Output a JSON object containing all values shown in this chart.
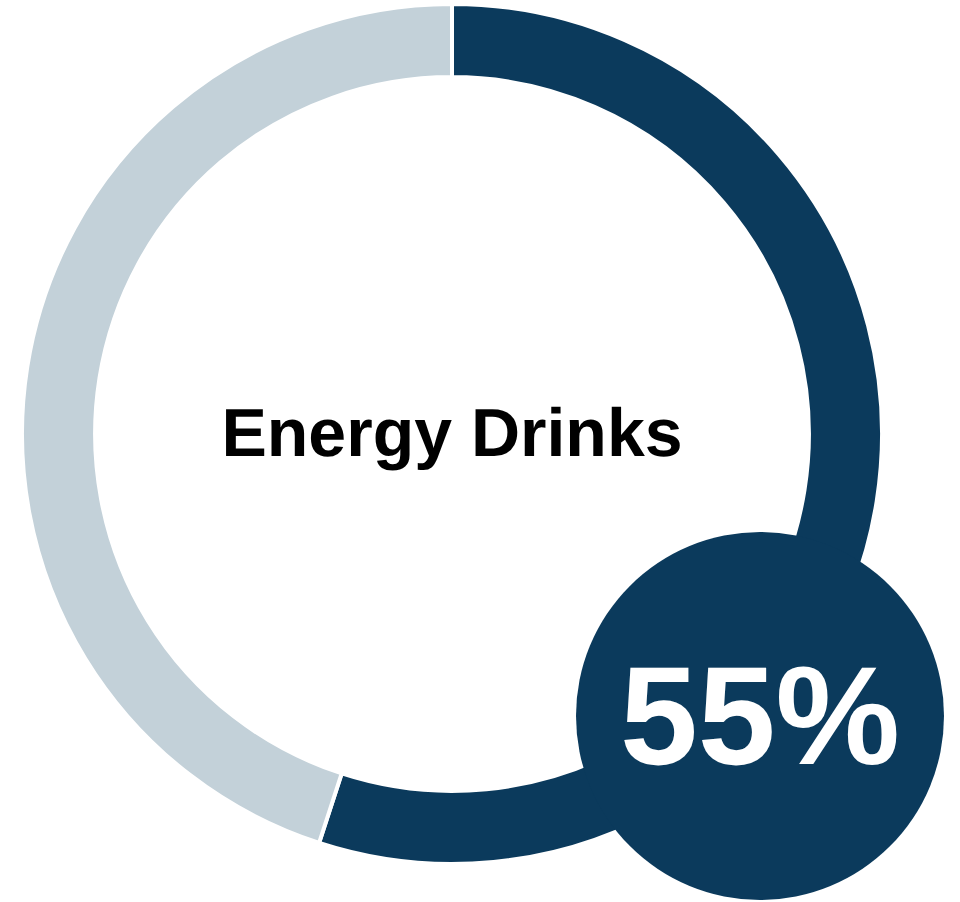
{
  "chart_data": {
    "type": "donut",
    "title": "Energy Drinks",
    "categories": [
      null,
      null
    ],
    "values": [
      55,
      45
    ],
    "colors": [
      "#0b3a5c",
      "#c3d1d9"
    ],
    "value_labels": [
      "55%",
      null
    ]
  }
}
